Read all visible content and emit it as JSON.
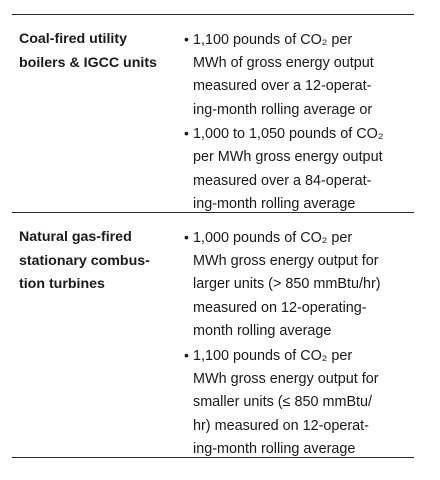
{
  "rows": [
    {
      "label_lines": [
        "Coal-fired utility",
        "boilers & IGCC units"
      ],
      "bullets": [
        {
          "lines": [
            "1,100 pounds of CO₂ per",
            "MWh of gross energy output",
            "measured over a 12-operat-",
            "ing-month rolling average or"
          ]
        },
        {
          "lines": [
            "1,000 to 1,050 pounds of CO₂",
            "per MWh gross energy output",
            "measured over a 84-operat-",
            "ing-month rolling average"
          ]
        }
      ]
    },
    {
      "label_lines": [
        "Natural gas-fired",
        "stationary combus-",
        "tion turbines"
      ],
      "bullets": [
        {
          "lines": [
            "1,000 pounds of CO₂ per",
            "MWh gross energy output for",
            "larger units (> 850 mmBtu/hr)",
            "measured on 12-operating-",
            "month rolling average"
          ]
        },
        {
          "lines": [
            "1,100 pounds of CO₂ per",
            "MWh gross energy output for",
            "smaller units (≤ 850 mmBtu/",
            "hr) measured on 12-operat-",
            "ing-month rolling average"
          ]
        }
      ]
    }
  ],
  "bullet_glyph": "•"
}
